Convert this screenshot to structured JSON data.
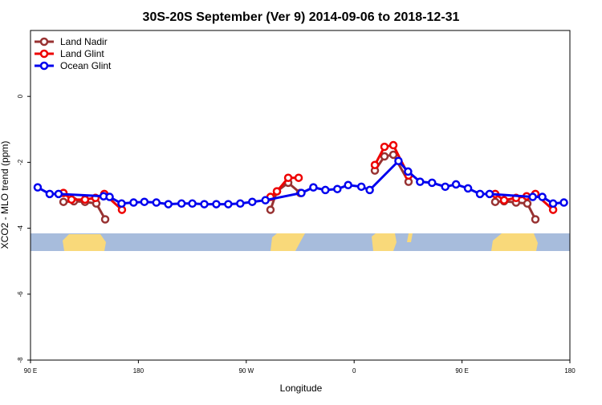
{
  "chart_data": {
    "type": "line",
    "title": "30S-20S September (Ver 9)   2014-09-06 to 2018-12-31",
    "x_label": "Longitude",
    "y_label": "XCO2 - MLO trend (ppm)",
    "xlim": [
      90,
      540
    ],
    "ylim": [
      -8,
      2
    ],
    "xticks": [
      {
        "value": 90,
        "label": "90 E"
      },
      {
        "value": 180,
        "label": "180"
      },
      {
        "value": 270,
        "label": "90 W"
      },
      {
        "value": 360,
        "label": "0"
      },
      {
        "value": 450,
        "label": "90 E"
      },
      {
        "value": 540,
        "label": "180"
      }
    ],
    "yticks": [
      -8,
      -6,
      -4,
      -2,
      0
    ],
    "legend": "top-left",
    "series": [
      {
        "name": "Land Nadir",
        "color": "#983232",
        "x": [
          117.5,
          126.2,
          135.5,
          144.9,
          152.3,
          null,
          290.2,
          295.6,
          305,
          315,
          null,
          377.3,
          385.3,
          392.7,
          405.4,
          null,
          477.7,
          485.1,
          495.1,
          504.5,
          511.2
        ],
        "values": [
          -3.2,
          -3.18,
          -3.2,
          -3.25,
          -3.73,
          null,
          -3.44,
          -2.88,
          -2.62,
          -2.93,
          null,
          -2.25,
          -1.82,
          -1.77,
          -2.59,
          null,
          -3.2,
          -3.18,
          -3.22,
          -3.25,
          -3.73
        ]
      },
      {
        "name": "Land Glint",
        "color": "#ee0000",
        "x": [
          117.5,
          124.2,
          135.5,
          144.2,
          151.6,
          166.3,
          null,
          290.2,
          295.6,
          305,
          313.7,
          null,
          377.3,
          385.3,
          392.7,
          405.4,
          null,
          477.7,
          485.1,
          495.1,
          503.9,
          511.2,
          526
        ],
        "values": [
          -2.93,
          -3.13,
          -3.13,
          -3.08,
          -2.96,
          -3.44,
          null,
          -3.05,
          -2.88,
          -2.47,
          -2.47,
          null,
          -2.08,
          -1.53,
          -1.48,
          -2.4,
          null,
          -2.96,
          -3.15,
          -3.08,
          -3.03,
          -2.96,
          -3.44
        ]
      },
      {
        "name": "Ocean Glint",
        "color": "#0000ee",
        "x": [
          96,
          106,
          113.4,
          151,
          156,
          166,
          176,
          185,
          195,
          205,
          216,
          225,
          235,
          245,
          255,
          265,
          275,
          286,
          316,
          326,
          336,
          346,
          355,
          366,
          373,
          397,
          405,
          415,
          425,
          436,
          445,
          455,
          465,
          473,
          509,
          517,
          526,
          535
        ],
        "values": [
          -2.76,
          -2.96,
          -2.96,
          -3.03,
          -3.05,
          -3.25,
          -3.22,
          -3.2,
          -3.22,
          -3.27,
          -3.25,
          -3.25,
          -3.27,
          -3.27,
          -3.27,
          -3.25,
          -3.2,
          -3.15,
          -2.93,
          -2.76,
          -2.84,
          -2.81,
          -2.69,
          -2.74,
          -2.84,
          -1.96,
          -2.28,
          -2.59,
          -2.62,
          -2.74,
          -2.67,
          -2.79,
          -2.96,
          -2.96,
          -3.05,
          -3.05,
          -3.25,
          -3.22
        ]
      }
    ]
  }
}
